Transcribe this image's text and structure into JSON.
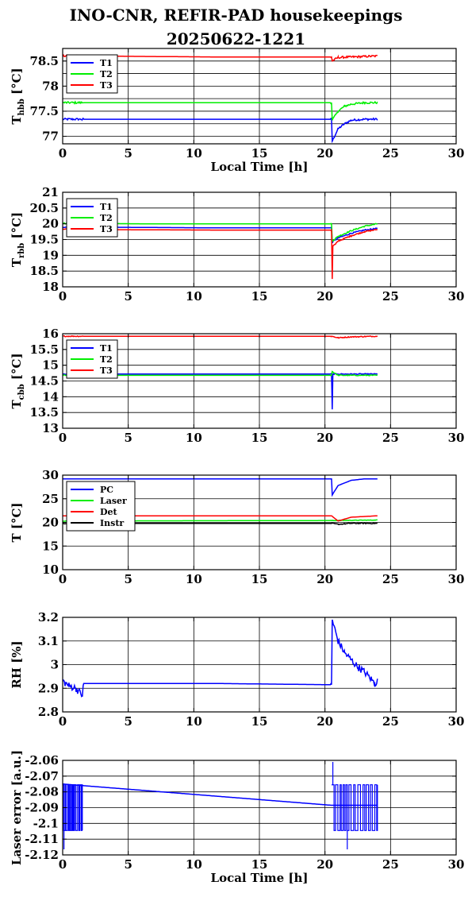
{
  "figure": {
    "title": "INO-CNR, REFIR-PAD housekeepings",
    "subtitle": "20250622-1221"
  },
  "colors": {
    "blue": "#0000ff",
    "green": "#00ee00",
    "red": "#ff0000",
    "black": "#000000"
  },
  "chart_data": [
    {
      "type": "line",
      "ylabel": {
        "main": "T",
        "sub": "hbb",
        "suffix": " [°C]"
      },
      "xlabel": "Local Time [h]",
      "xlim": [
        0,
        30
      ],
      "ylim": [
        76.85,
        78.75
      ],
      "xticks": [
        0,
        5,
        10,
        15,
        20,
        25,
        30
      ],
      "yticks": [
        77,
        77.5,
        78,
        78.5
      ],
      "ytick_labels": [
        "77",
        "77.5",
        "78",
        "78.5"
      ],
      "hgrid": [
        77,
        77.25,
        77.5,
        77.75,
        78,
        78.25,
        78.5,
        78.75
      ],
      "vgrid": [
        5,
        10,
        15,
        20,
        25
      ],
      "legend": {
        "placement": "top-left",
        "entries": [
          "T1",
          "T2",
          "T3"
        ]
      },
      "series": [
        {
          "name": "T1",
          "color": "blue",
          "noise": 0.02,
          "x": [
            0,
            1.5,
            20.5,
            20.55,
            21,
            21.5,
            22,
            23,
            24
          ],
          "y": [
            77.34,
            77.34,
            77.34,
            76.9,
            77.15,
            77.25,
            77.32,
            77.34,
            77.34
          ]
        },
        {
          "name": "T2",
          "color": "green",
          "noise": 0.02,
          "x": [
            0,
            1.5,
            20.5,
            20.55,
            21,
            21.5,
            22,
            23,
            24
          ],
          "y": [
            77.67,
            77.67,
            77.67,
            77.32,
            77.5,
            77.6,
            77.64,
            77.67,
            77.67
          ]
        },
        {
          "name": "T3",
          "color": "red",
          "noise": 0.02,
          "x": [
            0,
            1.5,
            12,
            20.5,
            20.55,
            21,
            22,
            24
          ],
          "y": [
            78.6,
            78.6,
            78.58,
            78.58,
            78.5,
            78.57,
            78.58,
            78.6
          ]
        }
      ]
    },
    {
      "type": "line",
      "ylabel": {
        "main": "T",
        "sub": "rbb",
        "suffix": " [°C]"
      },
      "xlabel": "",
      "xlim": [
        0,
        30
      ],
      "ylim": [
        18,
        21
      ],
      "xticks": [
        0,
        5,
        10,
        15,
        20,
        25,
        30
      ],
      "yticks": [
        18,
        18.5,
        19,
        19.5,
        20,
        20.5,
        21
      ],
      "ytick_labels": [
        "18",
        "18.5",
        "19",
        "19.5",
        "20",
        "20.5",
        "21"
      ],
      "hgrid": [
        18.5,
        19,
        19.5,
        20,
        20.5
      ],
      "vgrid": [
        5,
        10,
        15,
        20,
        25
      ],
      "legend": {
        "placement": "top-left",
        "entries": [
          "T1",
          "T2",
          "T3"
        ]
      },
      "series": [
        {
          "name": "T1",
          "color": "blue",
          "noise": 0.02,
          "x": [
            0,
            12,
            20.5,
            20.55,
            21,
            22,
            23,
            24
          ],
          "y": [
            19.9,
            19.87,
            19.87,
            19.42,
            19.55,
            19.7,
            19.8,
            19.85
          ]
        },
        {
          "name": "T2",
          "color": "green",
          "noise": 0.02,
          "x": [
            0,
            6,
            20.5,
            20.55,
            21,
            22,
            23,
            24
          ],
          "y": [
            20.02,
            20.0,
            20.0,
            19.45,
            19.6,
            19.78,
            19.92,
            20.0
          ]
        },
        {
          "name": "T3",
          "color": "red",
          "noise": 0.02,
          "x": [
            0,
            12,
            20.5,
            20.55,
            20.6,
            20.8,
            21,
            22,
            23,
            24
          ],
          "y": [
            19.82,
            19.8,
            19.8,
            18.25,
            19.3,
            19.35,
            19.45,
            19.62,
            19.75,
            19.82
          ]
        }
      ]
    },
    {
      "type": "line",
      "ylabel": {
        "main": "T",
        "sub": "cbb",
        "suffix": " [°C]"
      },
      "xlabel": "",
      "xlim": [
        0,
        30
      ],
      "ylim": [
        13,
        16
      ],
      "xticks": [
        0,
        5,
        10,
        15,
        20,
        25,
        30
      ],
      "yticks": [
        13,
        13.5,
        14,
        14.5,
        15,
        15.5,
        16
      ],
      "ytick_labels": [
        "13",
        "13.5",
        "14",
        "14.5",
        "15",
        "15.5",
        "16"
      ],
      "hgrid": [
        13.5,
        14,
        14.5,
        15,
        15.5
      ],
      "vgrid": [
        5,
        10,
        15,
        20,
        25
      ],
      "legend": {
        "placement": "top-left",
        "entries": [
          "T1",
          "T2",
          "T3"
        ]
      },
      "series": [
        {
          "name": "T1",
          "color": "blue",
          "noise": 0.015,
          "x": [
            0,
            20.5,
            20.55,
            20.6,
            21,
            24
          ],
          "y": [
            14.72,
            14.72,
            13.6,
            14.72,
            14.72,
            14.72
          ]
        },
        {
          "name": "T2",
          "color": "green",
          "noise": 0.015,
          "x": [
            0,
            20.5,
            20.55,
            21,
            24
          ],
          "y": [
            14.68,
            14.68,
            14.8,
            14.68,
            14.68
          ]
        },
        {
          "name": "T3",
          "color": "red",
          "noise": 0.015,
          "x": [
            0,
            20.5,
            21,
            22,
            24
          ],
          "y": [
            15.92,
            15.92,
            15.87,
            15.9,
            15.92
          ]
        }
      ]
    },
    {
      "type": "line",
      "ylabel": {
        "main": "T [°C]",
        "sub": "",
        "suffix": ""
      },
      "xlabel": "",
      "xlim": [
        0,
        30
      ],
      "ylim": [
        10,
        30
      ],
      "xticks": [
        0,
        5,
        10,
        15,
        20,
        25,
        30
      ],
      "yticks": [
        10,
        15,
        20,
        25,
        30
      ],
      "ytick_labels": [
        "10",
        "15",
        "20",
        "25",
        "30"
      ],
      "hgrid": [
        15,
        20,
        25
      ],
      "vgrid": [
        5,
        10,
        15,
        20,
        25
      ],
      "legend": {
        "placement": "top-left",
        "entries": [
          "PC",
          "Laser",
          "Det",
          "Instr"
        ]
      },
      "series": [
        {
          "name": "PC",
          "color": "blue",
          "noise": 0,
          "x": [
            0,
            20.5,
            20.55,
            21,
            22,
            23,
            24
          ],
          "y": [
            29.2,
            29.2,
            25.8,
            27.8,
            28.9,
            29.2,
            29.2
          ]
        },
        {
          "name": "Laser",
          "color": "green",
          "noise": 0.05,
          "x": [
            0,
            20.5,
            24
          ],
          "y": [
            20.3,
            20.4,
            20.5
          ]
        },
        {
          "name": "Det",
          "color": "red",
          "noise": 0,
          "x": [
            0,
            20.5,
            21,
            22,
            24
          ],
          "y": [
            21.4,
            21.4,
            20.3,
            21.1,
            21.4
          ]
        },
        {
          "name": "Instr",
          "color": "black",
          "noise": 0.1,
          "x": [
            0,
            20.5,
            21,
            22,
            24
          ],
          "y": [
            19.8,
            19.8,
            19.6,
            19.8,
            19.8
          ]
        }
      ]
    },
    {
      "type": "line",
      "ylabel": {
        "main": "RH [%]",
        "sub": "",
        "suffix": ""
      },
      "xlabel": "",
      "xlim": [
        0,
        30
      ],
      "ylim": [
        2.8,
        3.2
      ],
      "xticks": [
        0,
        5,
        10,
        15,
        20,
        25,
        30
      ],
      "yticks": [
        2.8,
        2.9,
        3,
        3.1,
        3.2
      ],
      "ytick_labels": [
        "2.8",
        "2.9",
        "3",
        "3.1",
        "3.2"
      ],
      "hgrid": [
        2.9,
        3,
        3.1
      ],
      "vgrid": [
        5,
        10,
        15,
        20,
        25
      ],
      "legend": null,
      "series": [
        {
          "name": "",
          "color": "blue",
          "noise": 0.015,
          "x": [
            0,
            0.5,
            1,
            1.5,
            1.6,
            12,
            20.5,
            20.55,
            21,
            21.5,
            22,
            22.5,
            23,
            23.5,
            23.8,
            24
          ],
          "y": [
            2.93,
            2.91,
            2.9,
            2.87,
            2.92,
            2.92,
            2.915,
            3.19,
            3.1,
            3.05,
            3.02,
            2.99,
            2.97,
            2.94,
            2.92,
            2.93
          ]
        }
      ]
    },
    {
      "type": "line",
      "ylabel": {
        "main": "Laser error [a.u.]",
        "sub": "",
        "suffix": ""
      },
      "xlabel": "Local Time [h]",
      "xlim": [
        0,
        30
      ],
      "ylim": [
        -2.12,
        -2.06
      ],
      "xticks": [
        0,
        5,
        10,
        15,
        20,
        25,
        30
      ],
      "yticks": [
        -2.12,
        -2.11,
        -2.1,
        -2.09,
        -2.08,
        -2.07,
        -2.06
      ],
      "ytick_labels": [
        "-2.12",
        "-2.11",
        "-2.1",
        "-2.09",
        "-2.08",
        "-2.07",
        "-2.06"
      ],
      "hgrid": [
        -2.11,
        -2.1,
        -2.09,
        -2.08,
        -2.07
      ],
      "vgrid": [
        5,
        10,
        15,
        20,
        25
      ],
      "legend": null,
      "series": [
        {
          "name": "",
          "color": "blue",
          "noise": 0,
          "x": [
            0,
            1.5,
            20.5,
            21,
            22,
            24
          ],
          "y": [
            -2.075,
            -2.076,
            -2.0885,
            -2.0885,
            -2.0885,
            -2.0885
          ]
        }
      ]
    }
  ]
}
